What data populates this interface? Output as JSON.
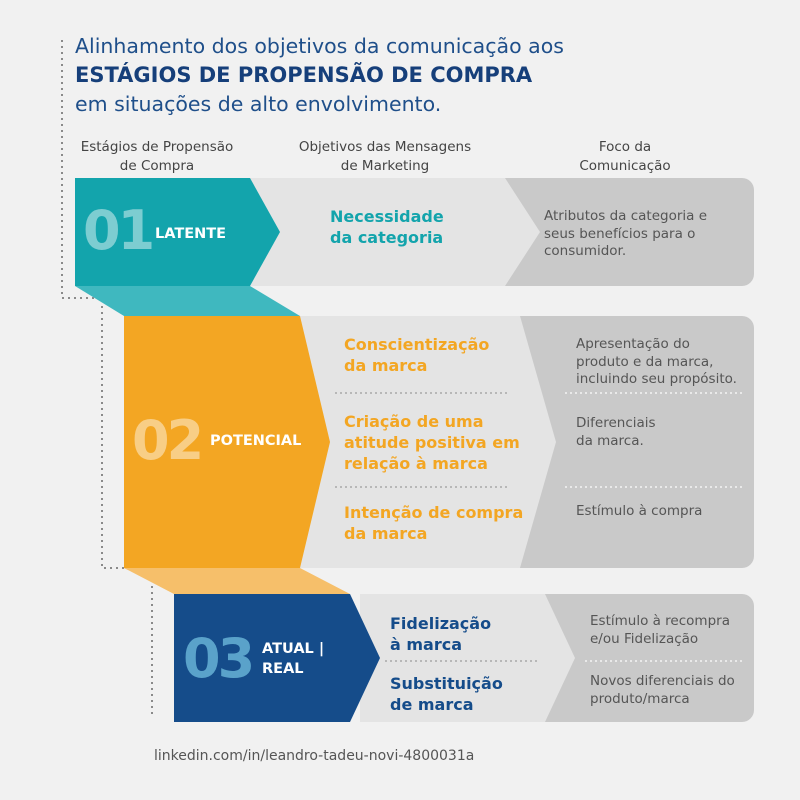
{
  "title": {
    "line1": "Alinhamento dos objetivos da comunicação aos",
    "line2": "ESTÁGIOS DE PROPENSÃO DE COMPRA",
    "line3": "em situações de alto envolvimento."
  },
  "headers": {
    "stages_line1": "Estágios de Propensão",
    "stages_line2": "de Compra",
    "objectives_line1": "Objetivos das Mensagens",
    "objectives_line2": "de Marketing",
    "focus_line1": "Foco da",
    "focus_line2": "Comunicação"
  },
  "stages": [
    {
      "number": "01",
      "label": "LATENTE",
      "color": "#13a4ac",
      "objectives": [
        [
          "Necessidade",
          "da categoria"
        ]
      ],
      "focus": [
        [
          "Atributos da categoria e",
          "seus benefícios para o",
          "consumidor."
        ]
      ]
    },
    {
      "number": "02",
      "label": "POTENCIAL",
      "color": "#f3a623",
      "objectives": [
        [
          "Conscientização",
          "da marca"
        ],
        [
          "Criação de uma",
          "atitude positiva em",
          "relação à marca"
        ],
        [
          "Intenção de compra",
          "da marca"
        ]
      ],
      "focus": [
        [
          "Apresentação do",
          "produto e da marca,",
          "incluindo seu propósito."
        ],
        [
          "Diferenciais",
          "da marca."
        ],
        [
          "Estímulo à compra"
        ]
      ]
    },
    {
      "number": "03",
      "label_line1": "ATUAL |",
      "label_line2": "REAL",
      "color": "#154c8a",
      "objectives": [
        [
          "Fidelização",
          "à marca"
        ],
        [
          "Substituição",
          "de marca"
        ]
      ],
      "focus": [
        [
          "Estímulo à recompra",
          "e/ou Fidelização"
        ],
        [
          "Novos diferenciais do",
          "produto/marca"
        ]
      ]
    }
  ],
  "footer": "linkedin.com/in/leandro-tadeu-novi-4800031a"
}
